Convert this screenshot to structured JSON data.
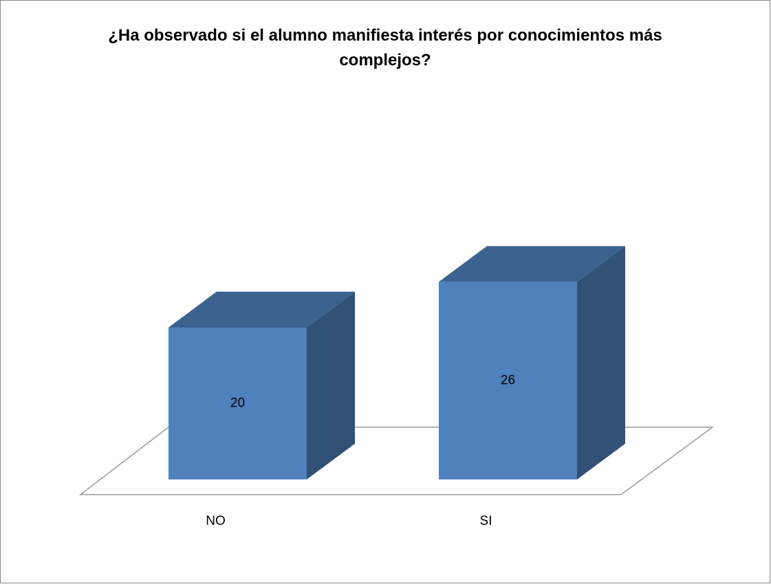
{
  "chart_data": {
    "type": "bar3d",
    "title": "¿Ha observado si el alumno manifiesta interés por conocimientos más complejos?",
    "categories": [
      "NO",
      "SI"
    ],
    "values": [
      20,
      26
    ],
    "color": "#4f81bd"
  }
}
